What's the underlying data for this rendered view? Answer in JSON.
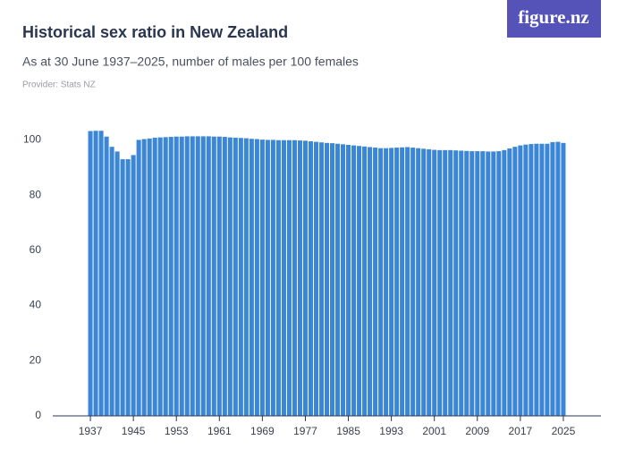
{
  "logo": "figure.nz",
  "chart_data": {
    "type": "bar",
    "title": "Historical sex ratio in New Zealand",
    "subtitle": "As at 30 June 1937–2025, number of males per 100 females",
    "provider": "Provider: Stats NZ",
    "color": "#3b87d6",
    "x": [
      1937,
      1938,
      1939,
      1940,
      1941,
      1942,
      1943,
      1944,
      1945,
      1946,
      1947,
      1948,
      1949,
      1950,
      1951,
      1952,
      1953,
      1954,
      1955,
      1956,
      1957,
      1958,
      1959,
      1960,
      1961,
      1962,
      1963,
      1964,
      1965,
      1966,
      1967,
      1968,
      1969,
      1970,
      1971,
      1972,
      1973,
      1974,
      1975,
      1976,
      1977,
      1978,
      1979,
      1980,
      1981,
      1982,
      1983,
      1984,
      1985,
      1986,
      1987,
      1988,
      1989,
      1990,
      1991,
      1992,
      1993,
      1994,
      1995,
      1996,
      1997,
      1998,
      1999,
      2000,
      2001,
      2002,
      2003,
      2004,
      2005,
      2006,
      2007,
      2008,
      2009,
      2010,
      2011,
      2012,
      2013,
      2014,
      2015,
      2016,
      2017,
      2018,
      2019,
      2020,
      2021,
      2022,
      2023,
      2024,
      2025
    ],
    "values": [
      103.2,
      103.3,
      103.3,
      101.2,
      97.5,
      95.8,
      93.0,
      93.0,
      94.5,
      100.0,
      100.3,
      100.5,
      100.8,
      100.9,
      101.0,
      101.1,
      101.2,
      101.2,
      101.3,
      101.3,
      101.3,
      101.3,
      101.3,
      101.2,
      101.2,
      101.1,
      100.9,
      100.8,
      100.7,
      100.6,
      100.4,
      100.3,
      100.1,
      100.0,
      100.0,
      99.9,
      99.9,
      99.9,
      99.9,
      99.8,
      99.7,
      99.5,
      99.3,
      99.1,
      98.9,
      98.8,
      98.6,
      98.4,
      98.2,
      98.0,
      97.8,
      97.6,
      97.4,
      97.2,
      97.0,
      97.0,
      97.1,
      97.2,
      97.3,
      97.4,
      97.2,
      97.0,
      96.8,
      96.6,
      96.4,
      96.3,
      96.3,
      96.3,
      96.2,
      96.1,
      96.0,
      95.9,
      95.9,
      95.9,
      95.8,
      95.8,
      95.9,
      96.3,
      96.9,
      97.5,
      98.0,
      98.3,
      98.5,
      98.6,
      98.6,
      98.6,
      99.2,
      99.3,
      98.9
    ],
    "xlim": [
      1930,
      2032
    ],
    "xticks": [
      1937,
      1945,
      1953,
      1961,
      1969,
      1977,
      1985,
      1993,
      2001,
      2009,
      2017,
      2025
    ],
    "ylim": [
      0,
      105
    ],
    "yticks": [
      0,
      20,
      40,
      60,
      80,
      100
    ],
    "grid": false
  }
}
